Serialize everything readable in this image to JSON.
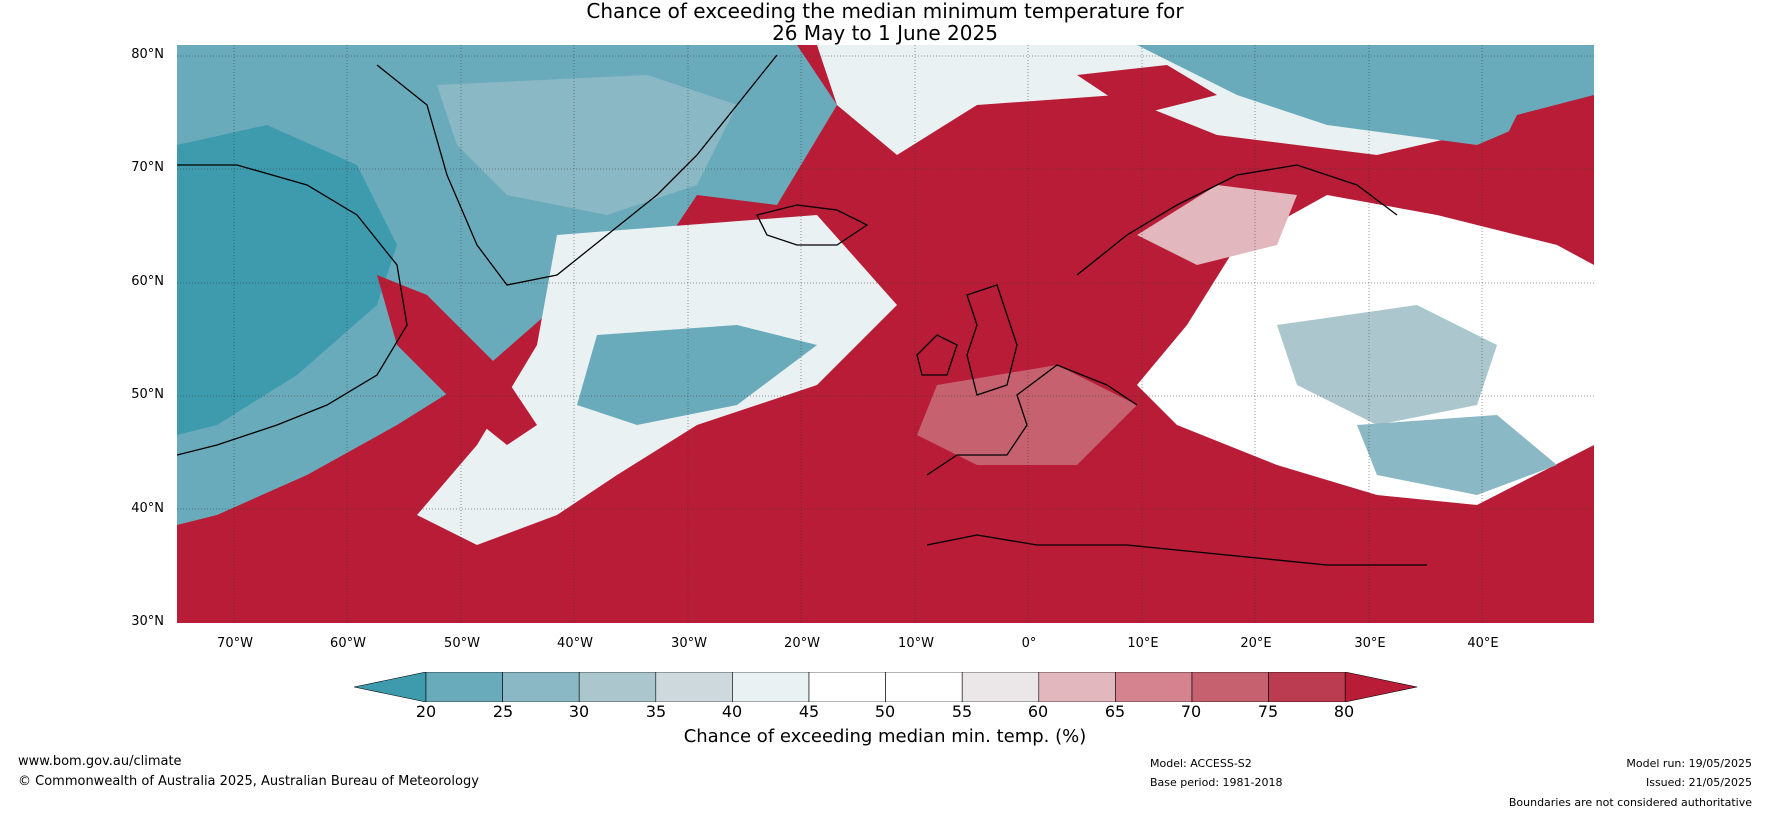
{
  "title_line1": "Chance of exceeding the median minimum temperature for",
  "title_line2": "26 May to 1 June 2025",
  "lat_labels": [
    "80°N",
    "70°N",
    "60°N",
    "50°N",
    "40°N",
    "30°N"
  ],
  "lon_labels": [
    "70°W",
    "60°W",
    "50°W",
    "40°W",
    "30°W",
    "20°W",
    "10°W",
    "0°",
    "10°E",
    "20°E",
    "30°E",
    "40°E"
  ],
  "colorbar": {
    "ticks": [
      "20",
      "25",
      "30",
      "35",
      "40",
      "45",
      "50",
      "55",
      "60",
      "65",
      "70",
      "75",
      "80"
    ],
    "label": "Chance of exceeding median min. temp. (%)",
    "colors": {
      "under": "#3e9aad",
      "bins": [
        "#6aabbb",
        "#8ab9c5",
        "#abc7cd",
        "#cdd9dc",
        "#eaf1f3",
        "#ffffff",
        "#ffffff",
        "#ebe6e7",
        "#e2b7bd",
        "#d4838f",
        "#c66170",
        "#bb3c50"
      ],
      "over": "#b81c36"
    }
  },
  "footer": {
    "url": "www.bom.gov.au/climate",
    "copyright": "© Commonwealth of Australia 2025, Australian Bureau of Meteorology",
    "model": "Model: ACCESS-S2",
    "base_period": "Base period: 1981-2018",
    "model_run": "Model run: 19/05/2025",
    "issued": "Issued: 21/05/2025",
    "disclaimer": "Boundaries are not considered authoritative"
  }
}
